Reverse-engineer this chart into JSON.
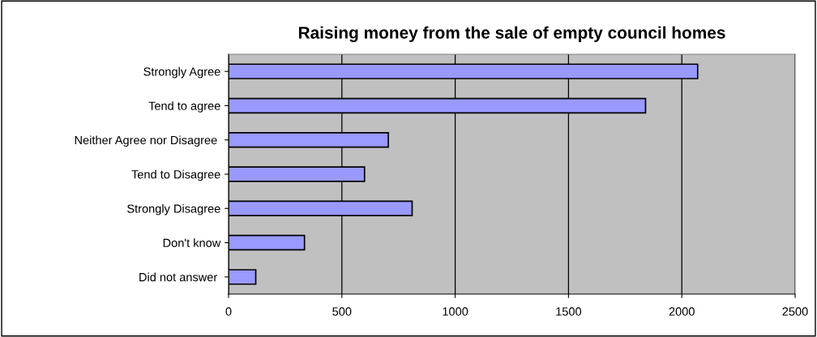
{
  "chart_data": {
    "type": "bar",
    "orientation": "horizontal",
    "title": "Raising money from the sale of empty council homes",
    "categories": [
      "Strongly Agree",
      "Tend to agree",
      "Neither Agree nor Disagree ",
      "Tend to Disagree",
      "Strongly Disagree",
      "Don't know",
      "Did not answer "
    ],
    "values": [
      2070,
      1840,
      705,
      600,
      810,
      335,
      120
    ],
    "color": "#9999ff",
    "xlim": [
      0,
      2500
    ],
    "xticks": [
      0,
      500,
      1000,
      1500,
      2000,
      2500
    ],
    "grid": "x"
  }
}
